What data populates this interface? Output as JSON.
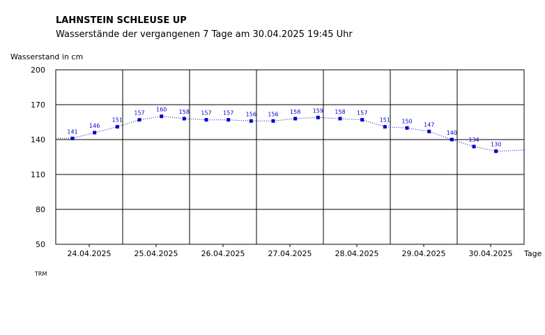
{
  "chart_data": {
    "type": "line",
    "title": "LAHNSTEIN SCHLEUSE UP",
    "subtitle": "Wasserstände der vergangenen 7 Tage am 30.04.2025 19:45 Uhr",
    "ylabel": "Wasserstand in cm",
    "xlabel": "Tage",
    "ylim": [
      50,
      200
    ],
    "yticks": [
      "200",
      "170",
      "140",
      "110",
      "80",
      "50"
    ],
    "day_labels": [
      "24.04.2025",
      "25.04.2025",
      "26.04.2025",
      "27.04.2025",
      "28.04.2025",
      "29.04.2025",
      "30.04.2025"
    ],
    "grid": true,
    "series": [
      {
        "color": "#0000cc",
        "points": [
          {
            "day": 0.25,
            "value": 141,
            "label": "141"
          },
          {
            "day": 0.58,
            "value": 146,
            "label": "146"
          },
          {
            "day": 0.92,
            "value": 151,
            "label": "151"
          },
          {
            "day": 1.25,
            "value": 157,
            "label": "157"
          },
          {
            "day": 1.58,
            "value": 160,
            "label": "160"
          },
          {
            "day": 1.92,
            "value": 158,
            "label": "158"
          },
          {
            "day": 2.25,
            "value": 157,
            "label": "157"
          },
          {
            "day": 2.58,
            "value": 157,
            "label": "157"
          },
          {
            "day": 2.92,
            "value": 156,
            "label": "156"
          },
          {
            "day": 3.25,
            "value": 156,
            "label": "156"
          },
          {
            "day": 3.58,
            "value": 158,
            "label": "158"
          },
          {
            "day": 3.92,
            "value": 159,
            "label": "159"
          },
          {
            "day": 4.25,
            "value": 158,
            "label": "158"
          },
          {
            "day": 4.58,
            "value": 157,
            "label": "157"
          },
          {
            "day": 4.92,
            "value": 151,
            "label": "151"
          },
          {
            "day": 5.25,
            "value": 150,
            "label": "150"
          },
          {
            "day": 5.58,
            "value": 147,
            "label": "147"
          },
          {
            "day": 5.92,
            "value": 140,
            "label": "140"
          },
          {
            "day": 6.25,
            "value": 134,
            "label": "134"
          },
          {
            "day": 6.58,
            "value": 130,
            "label": "130"
          }
        ]
      }
    ],
    "footer": "TRM"
  }
}
